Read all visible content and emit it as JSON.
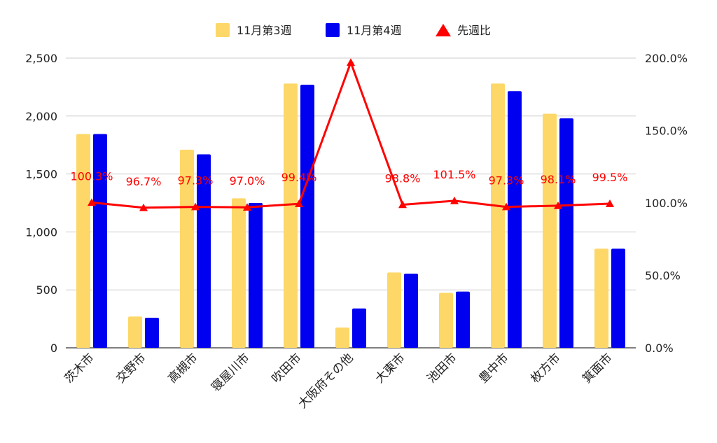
{
  "chart_data": {
    "type": "bar",
    "categories": [
      "茨木市",
      "交野市",
      "高槻市",
      "寝屋川市",
      "吹田市",
      "大阪府その他",
      "大東市",
      "池田市",
      "豊中市",
      "枚方市",
      "箕面市"
    ],
    "series": [
      {
        "name": "11月第3週",
        "type": "bar",
        "axis": "left",
        "color": "#FDD868",
        "values": [
          1845,
          270,
          1710,
          1290,
          2280,
          175,
          650,
          475,
          2280,
          2020,
          855
        ]
      },
      {
        "name": "11月第4週",
        "type": "bar",
        "axis": "left",
        "color": "#0000F0",
        "values": [
          1845,
          260,
          1670,
          1250,
          2270,
          340,
          640,
          485,
          2215,
          1980,
          855
        ]
      },
      {
        "name": "先週比",
        "type": "line",
        "axis": "right",
        "color": "#FF0000",
        "marker": "triangle",
        "values": [
          100.3,
          96.7,
          97.3,
          97.0,
          99.4,
          197.0,
          98.8,
          101.5,
          97.3,
          98.1,
          99.5
        ],
        "labels": [
          "100.3%",
          "96.7%",
          "97.3%",
          "97.0%",
          "99.4%",
          "",
          "98.8%",
          "101.5%",
          "97.3%",
          "98.1%",
          "99.5%"
        ]
      }
    ],
    "y_left": {
      "ylim": [
        0,
        2500
      ],
      "ticks": [
        "0",
        "500",
        "1,000",
        "1,500",
        "2,000",
        "2,500"
      ],
      "values": [
        0,
        500,
        1000,
        1500,
        2000,
        2500
      ]
    },
    "y_right": {
      "ylim": [
        0,
        200
      ],
      "ticks": [
        "0.0%",
        "50.0%",
        "100.0%",
        "150.0%",
        "200.0%"
      ],
      "values": [
        0,
        50,
        100,
        150,
        200
      ]
    },
    "legend_position": "top",
    "grid": true
  }
}
